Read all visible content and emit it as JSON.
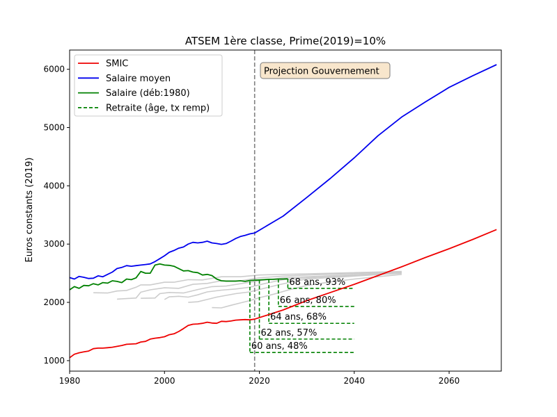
{
  "chart_data": {
    "type": "line",
    "title": "ATSEM 1ère classe, Prime(2019)=10%",
    "xlabel": "",
    "ylabel": "Euros constants (2019)",
    "xlim": [
      1980,
      2071
    ],
    "ylim": [
      820,
      6330
    ],
    "xticks": [
      1980,
      2000,
      2020,
      2040,
      2060
    ],
    "yticks": [
      1000,
      2000,
      3000,
      4000,
      5000,
      6000
    ],
    "grid": false,
    "legend_position": "top-left",
    "legend": [
      {
        "label": "SMIC",
        "color": "#ee0000",
        "style": "solid"
      },
      {
        "label": "Salaire moyen",
        "color": "#0000ee",
        "style": "solid"
      },
      {
        "label": "Salaire (déb:1980)",
        "color": "#008000",
        "style": "solid"
      },
      {
        "label": "Retraite (âge, tx remp)",
        "color": "#008000",
        "style": "dashed"
      }
    ],
    "vline": {
      "x": 2019,
      "color": "#808080",
      "style": "dashed"
    },
    "projection_label": "Projection Gouvernement",
    "series": [
      {
        "name": "SMIC",
        "color": "#ee0000",
        "points": [
          [
            1980,
            1050
          ],
          [
            1981,
            1110
          ],
          [
            1982,
            1135
          ],
          [
            1983,
            1150
          ],
          [
            1984,
            1165
          ],
          [
            1985,
            1205
          ],
          [
            1986,
            1215
          ],
          [
            1987,
            1215
          ],
          [
            1988,
            1222
          ],
          [
            1989,
            1230
          ],
          [
            1990,
            1245
          ],
          [
            1991,
            1260
          ],
          [
            1992,
            1280
          ],
          [
            1993,
            1285
          ],
          [
            1994,
            1290
          ],
          [
            1995,
            1320
          ],
          [
            1996,
            1330
          ],
          [
            1997,
            1370
          ],
          [
            1998,
            1385
          ],
          [
            1999,
            1395
          ],
          [
            2000,
            1410
          ],
          [
            2001,
            1445
          ],
          [
            2002,
            1460
          ],
          [
            2003,
            1500
          ],
          [
            2004,
            1550
          ],
          [
            2005,
            1605
          ],
          [
            2006,
            1625
          ],
          [
            2007,
            1630
          ],
          [
            2008,
            1640
          ],
          [
            2009,
            1660
          ],
          [
            2010,
            1645
          ],
          [
            2011,
            1640
          ],
          [
            2012,
            1675
          ],
          [
            2013,
            1670
          ],
          [
            2014,
            1680
          ],
          [
            2015,
            1695
          ],
          [
            2016,
            1700
          ],
          [
            2017,
            1705
          ],
          [
            2018,
            1700
          ],
          [
            2019,
            1712
          ],
          [
            2025,
            1870
          ],
          [
            2030,
            2030
          ],
          [
            2035,
            2170
          ],
          [
            2040,
            2310
          ],
          [
            2045,
            2460
          ],
          [
            2050,
            2610
          ],
          [
            2055,
            2770
          ],
          [
            2060,
            2920
          ],
          [
            2065,
            3080
          ],
          [
            2070,
            3250
          ]
        ]
      },
      {
        "name": "Salaire moyen",
        "color": "#0000ee",
        "points": [
          [
            1980,
            2425
          ],
          [
            1981,
            2400
          ],
          [
            1982,
            2445
          ],
          [
            1983,
            2430
          ],
          [
            1984,
            2410
          ],
          [
            1985,
            2415
          ],
          [
            1986,
            2455
          ],
          [
            1987,
            2440
          ],
          [
            1988,
            2480
          ],
          [
            1989,
            2520
          ],
          [
            1990,
            2580
          ],
          [
            1991,
            2600
          ],
          [
            1992,
            2630
          ],
          [
            1993,
            2620
          ],
          [
            1994,
            2630
          ],
          [
            1995,
            2640
          ],
          [
            1996,
            2650
          ],
          [
            1997,
            2660
          ],
          [
            1998,
            2700
          ],
          [
            1999,
            2750
          ],
          [
            2000,
            2800
          ],
          [
            2001,
            2860
          ],
          [
            2002,
            2890
          ],
          [
            2003,
            2930
          ],
          [
            2004,
            2950
          ],
          [
            2005,
            3000
          ],
          [
            2006,
            3030
          ],
          [
            2007,
            3020
          ],
          [
            2008,
            3030
          ],
          [
            2009,
            3050
          ],
          [
            2010,
            3020
          ],
          [
            2011,
            3010
          ],
          [
            2012,
            2995
          ],
          [
            2013,
            3010
          ],
          [
            2014,
            3050
          ],
          [
            2015,
            3095
          ],
          [
            2016,
            3130
          ],
          [
            2017,
            3150
          ],
          [
            2018,
            3175
          ],
          [
            2019,
            3190
          ],
          [
            2025,
            3480
          ],
          [
            2030,
            3800
          ],
          [
            2035,
            4130
          ],
          [
            2040,
            4480
          ],
          [
            2045,
            4860
          ],
          [
            2050,
            5180
          ],
          [
            2055,
            5440
          ],
          [
            2060,
            5690
          ],
          [
            2065,
            5890
          ],
          [
            2070,
            6080
          ]
        ]
      },
      {
        "name": "Salaire (déb:1980)",
        "color": "#008000",
        "points": [
          [
            1980,
            2215
          ],
          [
            1981,
            2270
          ],
          [
            1982,
            2240
          ],
          [
            1983,
            2290
          ],
          [
            1984,
            2285
          ],
          [
            1985,
            2320
          ],
          [
            1986,
            2300
          ],
          [
            1987,
            2340
          ],
          [
            1988,
            2330
          ],
          [
            1989,
            2370
          ],
          [
            1990,
            2360
          ],
          [
            1991,
            2340
          ],
          [
            1992,
            2400
          ],
          [
            1993,
            2390
          ],
          [
            1994,
            2420
          ],
          [
            1995,
            2530
          ],
          [
            1996,
            2500
          ],
          [
            1997,
            2500
          ],
          [
            1998,
            2640
          ],
          [
            1999,
            2660
          ],
          [
            2000,
            2640
          ],
          [
            2001,
            2635
          ],
          [
            2002,
            2620
          ],
          [
            2003,
            2580
          ],
          [
            2004,
            2540
          ],
          [
            2005,
            2545
          ],
          [
            2006,
            2520
          ],
          [
            2007,
            2510
          ],
          [
            2008,
            2470
          ],
          [
            2009,
            2480
          ],
          [
            2010,
            2460
          ],
          [
            2011,
            2400
          ],
          [
            2012,
            2370
          ],
          [
            2013,
            2365
          ],
          [
            2014,
            2365
          ],
          [
            2015,
            2365
          ],
          [
            2016,
            2370
          ],
          [
            2017,
            2360
          ],
          [
            2018,
            2375
          ],
          [
            2019,
            2380
          ],
          [
            2020,
            2385
          ],
          [
            2021,
            2390
          ],
          [
            2022,
            2395
          ],
          [
            2023,
            2395
          ],
          [
            2024,
            2400
          ],
          [
            2025,
            2400
          ],
          [
            2026,
            2405
          ]
        ]
      }
    ],
    "background_curves": {
      "name": "",
      "color": "#cccccc",
      "segments": [
        [
          [
            1985,
            2165
          ],
          [
            1988,
            2160
          ],
          [
            1990,
            2195
          ],
          [
            1992,
            2205
          ],
          [
            1994,
            2260
          ],
          [
            1995,
            2300
          ],
          [
            1997,
            2300
          ],
          [
            2000,
            2345
          ],
          [
            2002,
            2345
          ],
          [
            2005,
            2390
          ],
          [
            2008,
            2385
          ],
          [
            2012,
            2440
          ],
          [
            2016,
            2440
          ],
          [
            2020,
            2470
          ],
          [
            2025,
            2480
          ],
          [
            2030,
            2490
          ],
          [
            2050,
            2530
          ]
        ],
        [
          [
            1990,
            2055
          ],
          [
            1992,
            2065
          ],
          [
            1994,
            2075
          ],
          [
            1995,
            2175
          ],
          [
            1997,
            2215
          ],
          [
            2000,
            2250
          ],
          [
            2003,
            2240
          ],
          [
            2006,
            2310
          ],
          [
            2009,
            2325
          ],
          [
            2012,
            2370
          ],
          [
            2016,
            2370
          ],
          [
            2020,
            2420
          ],
          [
            2025,
            2450
          ],
          [
            2030,
            2470
          ],
          [
            2050,
            2520
          ]
        ],
        [
          [
            1995,
            2070
          ],
          [
            1998,
            2075
          ],
          [
            1999,
            2150
          ],
          [
            2001,
            2170
          ],
          [
            2004,
            2160
          ],
          [
            2007,
            2220
          ],
          [
            2010,
            2270
          ],
          [
            2013,
            2280
          ],
          [
            2016,
            2320
          ],
          [
            2020,
            2370
          ],
          [
            2025,
            2420
          ],
          [
            2030,
            2440
          ],
          [
            2050,
            2510
          ]
        ],
        [
          [
            2000,
            2050
          ],
          [
            2001,
            2095
          ],
          [
            2003,
            2105
          ],
          [
            2005,
            2090
          ],
          [
            2007,
            2130
          ],
          [
            2009,
            2180
          ],
          [
            2012,
            2210
          ],
          [
            2015,
            2230
          ],
          [
            2018,
            2260
          ],
          [
            2021,
            2320
          ],
          [
            2025,
            2390
          ],
          [
            2030,
            2420
          ],
          [
            2050,
            2505
          ]
        ],
        [
          [
            2005,
            2000
          ],
          [
            2007,
            2010
          ],
          [
            2009,
            2050
          ],
          [
            2011,
            2090
          ],
          [
            2013,
            2120
          ],
          [
            2015,
            2150
          ],
          [
            2018,
            2180
          ],
          [
            2021,
            2240
          ],
          [
            2024,
            2300
          ],
          [
            2028,
            2370
          ],
          [
            2030,
            2400
          ],
          [
            2050,
            2500
          ]
        ],
        [
          [
            2010,
            1910
          ],
          [
            2012,
            1905
          ],
          [
            2014,
            1950
          ],
          [
            2016,
            1990
          ],
          [
            2018,
            2030
          ],
          [
            2020,
            2080
          ],
          [
            2023,
            2140
          ],
          [
            2026,
            2210
          ],
          [
            2030,
            2290
          ],
          [
            2035,
            2350
          ],
          [
            2040,
            2400
          ],
          [
            2050,
            2480
          ]
        ]
      ]
    },
    "retirement": [
      {
        "label": "60 ans, 48%",
        "age": 60,
        "rate_pct": 48,
        "start_x": 2018,
        "end_x": 2040,
        "y": 1140,
        "top_y": 2360
      },
      {
        "label": "62 ans, 57%",
        "age": 62,
        "rate_pct": 57,
        "start_x": 2020,
        "end_x": 2040,
        "y": 1370,
        "top_y": 2380
      },
      {
        "label": "64 ans, 68%",
        "age": 64,
        "rate_pct": 68,
        "start_x": 2022,
        "end_x": 2040,
        "y": 1640,
        "top_y": 2395
      },
      {
        "label": "66 ans, 80%",
        "age": 66,
        "rate_pct": 80,
        "start_x": 2024,
        "end_x": 2040,
        "y": 1930,
        "top_y": 2400
      },
      {
        "label": "68 ans, 93%",
        "age": 68,
        "rate_pct": 93,
        "start_x": 2026,
        "end_x": 2040,
        "y": 2240,
        "top_y": 2405
      }
    ]
  }
}
